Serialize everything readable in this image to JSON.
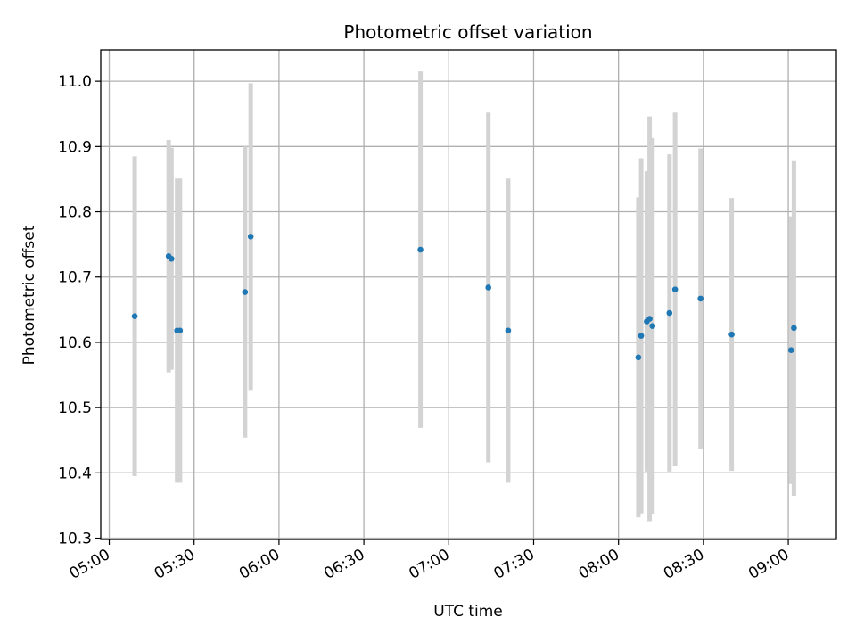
{
  "chart_data": {
    "type": "scatter",
    "title": "Photometric offset variation",
    "xlabel": "UTC time",
    "ylabel": "Photometric offset",
    "x_ticks": [
      "05:00",
      "05:30",
      "06:00",
      "06:30",
      "07:00",
      "07:30",
      "08:00",
      "08:30",
      "09:00"
    ],
    "y_ticks": [
      "10.3",
      "10.4",
      "10.5",
      "10.6",
      "10.7",
      "10.8",
      "10.9",
      "11.0"
    ],
    "xlim": [
      "04:57",
      "09:17"
    ],
    "ylim": [
      10.298,
      11.048
    ],
    "grid": true,
    "marker_color": "#1f77b4",
    "errorbar_color": "#d3d3d3",
    "points": [
      {
        "x": "05:09",
        "y": 10.64,
        "err": 0.245
      },
      {
        "x": "05:21",
        "y": 10.732,
        "err": 0.178
      },
      {
        "x": "05:22",
        "y": 10.728,
        "err": 0.17
      },
      {
        "x": "05:24",
        "y": 10.618,
        "err": 0.233
      },
      {
        "x": "05:25",
        "y": 10.618,
        "err": 0.233
      },
      {
        "x": "05:48",
        "y": 10.677,
        "err": 0.223
      },
      {
        "x": "05:50",
        "y": 10.762,
        "err": 0.235
      },
      {
        "x": "06:50",
        "y": 10.742,
        "err": 0.273
      },
      {
        "x": "07:14",
        "y": 10.684,
        "err": 0.268
      },
      {
        "x": "07:21",
        "y": 10.618,
        "err": 0.233
      },
      {
        "x": "08:07",
        "y": 10.577,
        "err": 0.245
      },
      {
        "x": "08:08",
        "y": 10.61,
        "err": 0.272
      },
      {
        "x": "08:10",
        "y": 10.632,
        "err": 0.23
      },
      {
        "x": "08:11",
        "y": 10.636,
        "err": 0.31
      },
      {
        "x": "08:12",
        "y": 10.625,
        "err": 0.288
      },
      {
        "x": "08:18",
        "y": 10.645,
        "err": 0.243
      },
      {
        "x": "08:20",
        "y": 10.681,
        "err": 0.271
      },
      {
        "x": "08:29",
        "y": 10.667,
        "err": 0.23
      },
      {
        "x": "08:40",
        "y": 10.612,
        "err": 0.209
      },
      {
        "x": "09:01",
        "y": 10.588,
        "err": 0.205
      },
      {
        "x": "09:02",
        "y": 10.622,
        "err": 0.257
      }
    ]
  }
}
